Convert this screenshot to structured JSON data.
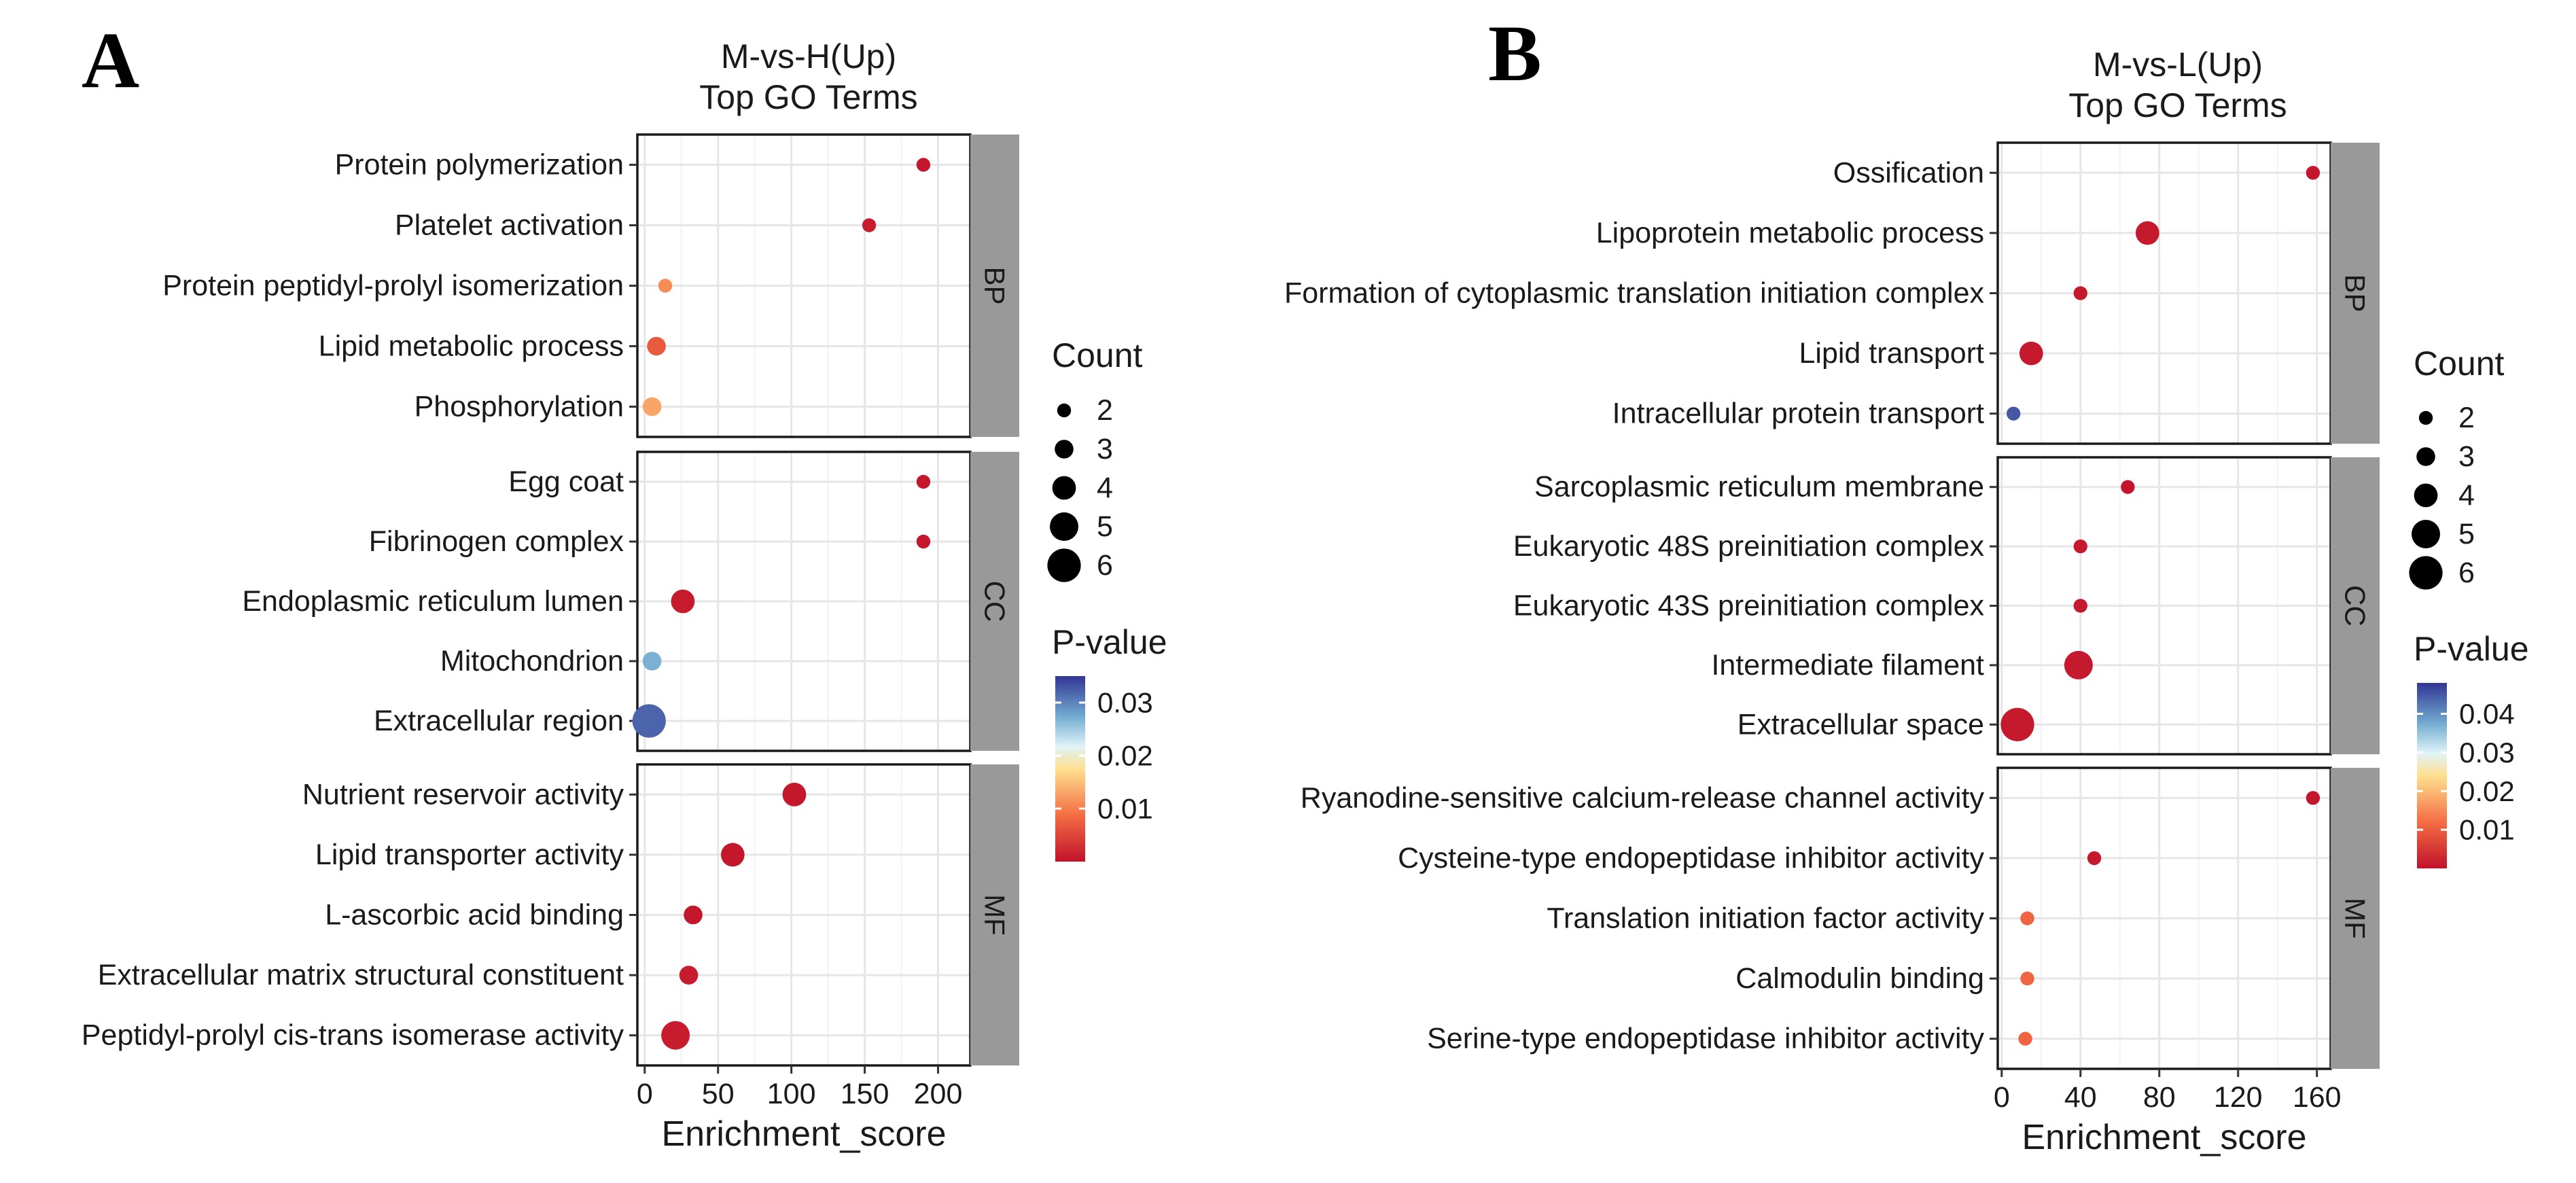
{
  "chart_data": [
    {
      "type": "scatter",
      "panel_label": "A",
      "title": [
        "M-vs-H(Up)",
        "Top GO Terms"
      ],
      "xlabel": "Enrichment_score",
      "xlim": [
        -5,
        222
      ],
      "xticks": [
        0,
        50,
        100,
        150,
        200
      ],
      "groups": [
        {
          "name": "BP",
          "terms": [
            {
              "term": "Protein polymerization",
              "score": 190,
              "count": 2,
              "p": 0.0005
            },
            {
              "term": "Platelet activation",
              "score": 153,
              "count": 2,
              "p": 0.001
            },
            {
              "term": "Protein peptidyl-prolyl isomerization",
              "score": 14,
              "count": 2,
              "p": 0.011
            },
            {
              "term": "Lipid metabolic process",
              "score": 8,
              "count": 3,
              "p": 0.007
            },
            {
              "term": "Phosphorylation",
              "score": 5,
              "count": 3,
              "p": 0.013
            }
          ]
        },
        {
          "name": "CC",
          "terms": [
            {
              "term": "Egg coat",
              "score": 190,
              "count": 2,
              "p": 0.0005
            },
            {
              "term": "Fibrinogen complex",
              "score": 190,
              "count": 2,
              "p": 0.0005
            },
            {
              "term": "Endoplasmic reticulum lumen",
              "score": 26,
              "count": 4,
              "p": 0.0008
            },
            {
              "term": "Mitochondrion",
              "score": 5,
              "count": 3,
              "p": 0.027
            },
            {
              "term": "Extracellular region",
              "score": 3,
              "count": 6,
              "p": 0.032
            }
          ]
        },
        {
          "name": "MF",
          "terms": [
            {
              "term": "Nutrient reservoir activity",
              "score": 102,
              "count": 4,
              "p": 0.0005
            },
            {
              "term": "Lipid transporter activity",
              "score": 60,
              "count": 4,
              "p": 0.0005
            },
            {
              "term": "L-ascorbic acid binding",
              "score": 33,
              "count": 3,
              "p": 0.0005
            },
            {
              "term": "Extracellular matrix structural constituent",
              "score": 30,
              "count": 3,
              "p": 0.001
            },
            {
              "term": "Peptidyl-prolyl cis-trans isomerase activity",
              "score": 21,
              "count": 5,
              "p": 0.001
            }
          ]
        }
      ],
      "size_legend": {
        "title": "Count",
        "values": [
          2,
          3,
          4,
          5,
          6
        ]
      },
      "color_legend": {
        "title": "P-value",
        "range": [
          0,
          0.035
        ],
        "ticks": [
          0.01,
          0.02,
          0.03
        ],
        "tick_labels": [
          "0.01",
          "0.02",
          "0.03"
        ]
      }
    },
    {
      "type": "scatter",
      "panel_label": "B",
      "title": [
        "M-vs-L(Up)",
        "Top GO Terms"
      ],
      "xlabel": "Enrichment_score",
      "xlim": [
        -2,
        167
      ],
      "xticks": [
        0,
        40,
        80,
        120,
        160
      ],
      "groups": [
        {
          "name": "BP",
          "terms": [
            {
              "term": "Ossification",
              "score": 158,
              "count": 2,
              "p": 0.0005
            },
            {
              "term": "Lipoprotein metabolic process",
              "score": 74,
              "count": 4,
              "p": 0.001
            },
            {
              "term": "Formation of cytoplasmic translation initiation complex",
              "score": 40,
              "count": 2,
              "p": 0.001
            },
            {
              "term": "Lipid transport",
              "score": 15,
              "count": 4,
              "p": 0.001
            },
            {
              "term": "Intracellular protein transport",
              "score": 6,
              "count": 2,
              "p": 0.045
            }
          ]
        },
        {
          "name": "CC",
          "terms": [
            {
              "term": "Sarcoplasmic reticulum membrane",
              "score": 64,
              "count": 2,
              "p": 0.0005
            },
            {
              "term": "Eukaryotic 48S preinitiation complex",
              "score": 40,
              "count": 2,
              "p": 0.001
            },
            {
              "term": "Eukaryotic 43S preinitiation complex",
              "score": 40,
              "count": 2,
              "p": 0.001
            },
            {
              "term": "Intermediate filament",
              "score": 39,
              "count": 5,
              "p": 0.001
            },
            {
              "term": "Extracellular space",
              "score": 8,
              "count": 6,
              "p": 0.001
            }
          ]
        },
        {
          "name": "MF",
          "terms": [
            {
              "term": "Ryanodine-sensitive calcium-release channel activity",
              "score": 158,
              "count": 2,
              "p": 0.0005
            },
            {
              "term": "Cysteine-type endopeptidase inhibitor activity",
              "score": 47,
              "count": 2,
              "p": 0.001
            },
            {
              "term": "Translation initiation factor activity",
              "score": 13,
              "count": 2,
              "p": 0.011
            },
            {
              "term": "Calmodulin binding",
              "score": 13,
              "count": 2,
              "p": 0.011
            },
            {
              "term": "Serine-type endopeptidase inhibitor activity",
              "score": 12,
              "count": 2,
              "p": 0.011
            }
          ]
        }
      ],
      "size_legend": {
        "title": "Count",
        "values": [
          2,
          3,
          4,
          5,
          6
        ]
      },
      "color_legend": {
        "title": "P-value",
        "range": [
          0,
          0.048
        ],
        "ticks": [
          0.01,
          0.02,
          0.03,
          0.04
        ],
        "tick_labels": [
          "0.01",
          "0.02",
          "0.03",
          "0.04"
        ]
      }
    }
  ]
}
